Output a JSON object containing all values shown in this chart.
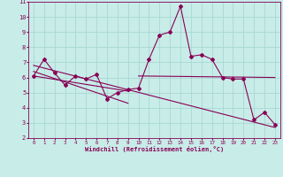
{
  "xlabel": "Windchill (Refroidissement éolien,°C)",
  "ylabel": "",
  "bg_color": "#c8ece8",
  "line_color": "#880055",
  "grid_color": "#a8d8d4",
  "xlim": [
    -0.5,
    23.5
  ],
  "ylim": [
    2,
    11
  ],
  "xticks": [
    0,
    1,
    2,
    3,
    4,
    5,
    6,
    7,
    8,
    9,
    10,
    11,
    12,
    13,
    14,
    15,
    16,
    17,
    18,
    19,
    20,
    21,
    22,
    23
  ],
  "yticks": [
    2,
    3,
    4,
    5,
    6,
    7,
    8,
    9,
    10,
    11
  ],
  "series1_x": [
    0,
    1,
    2,
    3,
    4,
    5,
    6,
    7,
    8,
    9,
    10,
    11,
    12,
    13,
    14,
    15,
    16,
    17,
    18,
    19,
    20,
    21,
    22,
    23
  ],
  "series1_y": [
    6.1,
    7.2,
    6.3,
    5.5,
    6.1,
    5.9,
    6.2,
    4.6,
    5.0,
    5.2,
    5.3,
    7.2,
    8.8,
    9.0,
    10.7,
    7.4,
    7.5,
    7.2,
    6.0,
    5.9,
    5.9,
    3.2,
    3.7,
    2.9
  ],
  "trend1_x": [
    0,
    23
  ],
  "trend1_y": [
    6.8,
    2.7
  ],
  "trend2_x": [
    0,
    9
  ],
  "trend2_y": [
    6.4,
    4.3
  ],
  "trend3_x": [
    0,
    9
  ],
  "trend3_y": [
    6.1,
    5.1
  ],
  "trend4_x": [
    10,
    23
  ],
  "trend4_y": [
    6.1,
    6.0
  ]
}
